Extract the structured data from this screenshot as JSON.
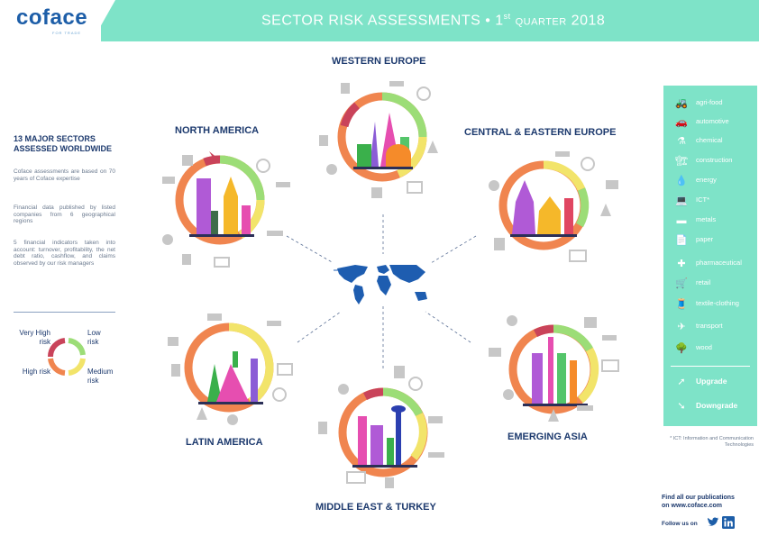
{
  "brand": {
    "logo": "coface",
    "tagline": "FOR TRADE"
  },
  "header": {
    "title_main": "SECTOR RISK ASSESSMENTS • 1",
    "title_sup": "st",
    "title_quarter": "QUARTER",
    "title_year": "2018"
  },
  "sidebar": {
    "heading": "13 MAJOR SECTORS ASSESSED WORLDWIDE",
    "para1": "Coface assessments are based on 70 years of Coface expertise",
    "para2": "Financial data published by listed companies from 6 geographical regions",
    "para3": "5 financial indicators taken into account: turnover, profitability, the net debt ratio, cashflow, and claims observed by our risk managers"
  },
  "risk_legend": {
    "very_high": "Very High risk",
    "low": "Low risk",
    "high": "High risk",
    "medium": "Medium risk",
    "colors": {
      "very_high": "#c9435a",
      "high": "#f0854f",
      "medium": "#f2e46a",
      "low": "#9cdd77"
    }
  },
  "regions": {
    "western_europe": "WESTERN EUROPE",
    "north_america": "NORTH AMERICA",
    "central_eastern_europe": "CENTRAL & EASTERN EUROPE",
    "latin_america": "LATIN AMERICA",
    "emerging_asia": "EMERGING ASIA",
    "middle_east_turkey": "MIDDLE EAST & TURKEY"
  },
  "sector_legend": {
    "items": [
      {
        "label": "agri-food",
        "icon": "tractor-icon",
        "glyph": "🚜"
      },
      {
        "label": "automotive",
        "icon": "car-icon",
        "glyph": "🚗"
      },
      {
        "label": "chemical",
        "icon": "flask-icon",
        "glyph": "⚗"
      },
      {
        "label": "construction",
        "icon": "crane-icon",
        "glyph": "🏗"
      },
      {
        "label": "energy",
        "icon": "oil-drop-icon",
        "glyph": "💧"
      },
      {
        "label": "ICT*",
        "icon": "laptop-icon",
        "glyph": "💻"
      },
      {
        "label": "metals",
        "icon": "metal-bars-icon",
        "glyph": "▬"
      },
      {
        "label": "paper",
        "icon": "paper-icon",
        "glyph": "📄"
      },
      {
        "label": "pharmaceutical",
        "icon": "pharma-cross-icon",
        "glyph": "✚"
      },
      {
        "label": "retail",
        "icon": "cash-register-icon",
        "glyph": "🛒"
      },
      {
        "label": "textile-clothing",
        "icon": "sewing-machine-icon",
        "glyph": "🧵"
      },
      {
        "label": "transport",
        "icon": "plane-icon",
        "glyph": "✈"
      },
      {
        "label": "wood",
        "icon": "tree-icon",
        "glyph": "🌳"
      }
    ],
    "upgrade": "Upgrade",
    "downgrade": "Downgrade"
  },
  "footnote": "* ICT: Information and Communication Technologies",
  "publications": {
    "line1": "Find all our publications",
    "line2": "on www.coface.com"
  },
  "follow": "Follow us on"
}
